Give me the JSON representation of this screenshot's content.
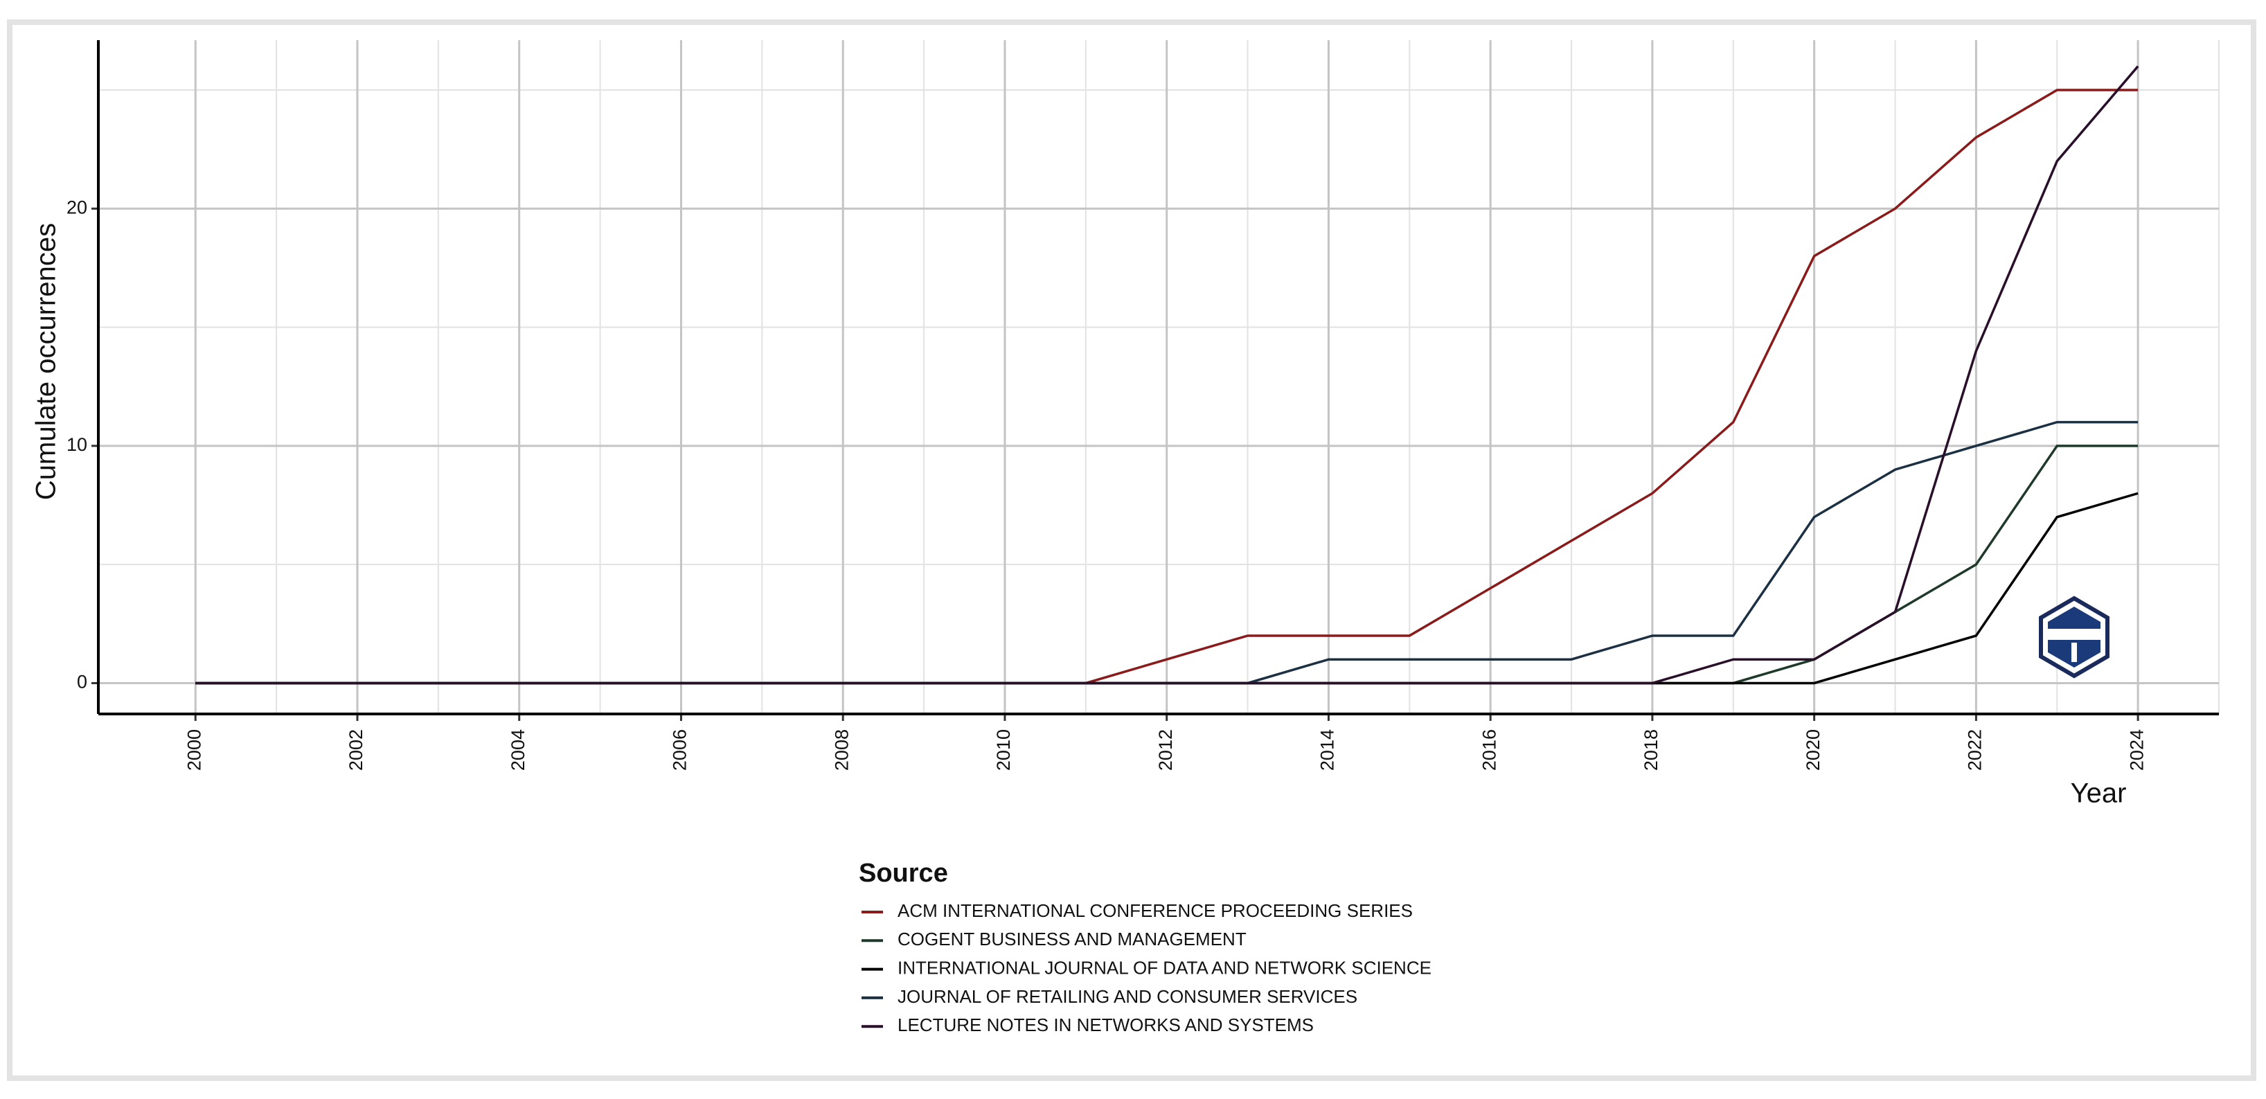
{
  "chart_data": {
    "type": "line",
    "x_label": "Year",
    "y_label": "Cumulate occurrences",
    "legend_title": "Source",
    "x": [
      2000,
      2001,
      2002,
      2003,
      2004,
      2005,
      2006,
      2007,
      2008,
      2009,
      2010,
      2011,
      2012,
      2013,
      2014,
      2015,
      2016,
      2017,
      2018,
      2019,
      2020,
      2021,
      2022,
      2023,
      2024
    ],
    "series": [
      {
        "name": "ACM INTERNATIONAL CONFERENCE PROCEEDING SERIES",
        "color": "#8b1a1a",
        "values": [
          0,
          0,
          0,
          0,
          0,
          0,
          0,
          0,
          0,
          0,
          0,
          0,
          1,
          2,
          2,
          2,
          4,
          6,
          8,
          11,
          18,
          20,
          23,
          25,
          25
        ]
      },
      {
        "name": "COGENT BUSINESS AND MANAGEMENT",
        "color": "#1f3a2a",
        "values": [
          0,
          0,
          0,
          0,
          0,
          0,
          0,
          0,
          0,
          0,
          0,
          0,
          0,
          0,
          0,
          0,
          0,
          0,
          0,
          0,
          1,
          3,
          5,
          10,
          10
        ]
      },
      {
        "name": "INTERNATIONAL JOURNAL OF DATA AND NETWORK SCIENCE",
        "color": "#000000",
        "values": [
          0,
          0,
          0,
          0,
          0,
          0,
          0,
          0,
          0,
          0,
          0,
          0,
          0,
          0,
          0,
          0,
          0,
          0,
          0,
          0,
          0,
          1,
          2,
          7,
          8
        ]
      },
      {
        "name": "JOURNAL OF RETAILING AND CONSUMER SERVICES",
        "color": "#1c3044",
        "values": [
          0,
          0,
          0,
          0,
          0,
          0,
          0,
          0,
          0,
          0,
          0,
          0,
          0,
          0,
          1,
          1,
          1,
          1,
          2,
          2,
          7,
          9,
          10,
          11,
          11
        ]
      },
      {
        "name": "LECTURE NOTES IN NETWORKS AND SYSTEMS",
        "color": "#2a0f2a",
        "values": [
          0,
          0,
          0,
          0,
          0,
          0,
          0,
          0,
          0,
          0,
          0,
          0,
          0,
          0,
          0,
          0,
          0,
          0,
          0,
          1,
          1,
          3,
          14,
          22,
          26
        ]
      }
    ],
    "xlim": [
      1998.8,
      2025.0
    ],
    "ylim": [
      -1.3,
      27.1
    ],
    "xticks": [
      2000,
      2002,
      2004,
      2006,
      2008,
      2010,
      2012,
      2014,
      2016,
      2018,
      2020,
      2022,
      2024
    ],
    "x_minor_ticks": [
      2001,
      2003,
      2005,
      2007,
      2009,
      2011,
      2013,
      2015,
      2017,
      2019,
      2021,
      2023,
      2025
    ],
    "yticks": [
      0,
      10,
      20
    ],
    "y_minor_ticks": [
      5,
      15,
      25
    ],
    "grid": true
  }
}
